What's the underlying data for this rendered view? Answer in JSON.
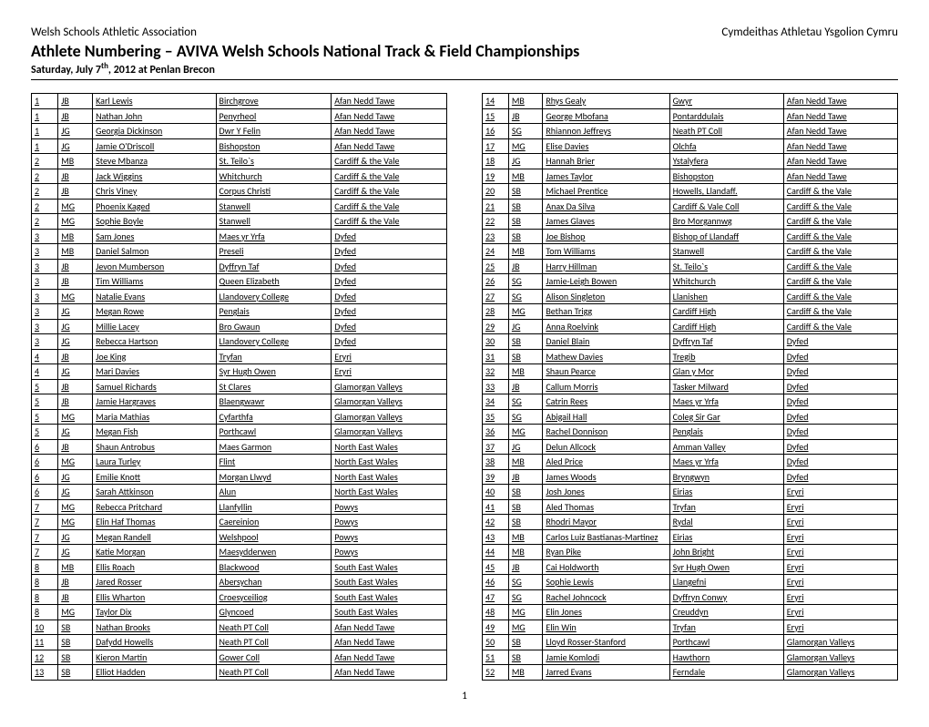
{
  "header_left": "Welsh Schools Athletic Association",
  "header_right": "Cymdeithas Athletau Ysgolion Cymru",
  "title": "Athlete Numbering – AVIVA Welsh Schools National Track & Field Championships",
  "subtitle_pre": "Saturday, July 7",
  "subtitle_sup": "th",
  "subtitle_post": ", 2012 at Penlan Brecon",
  "page_number": "1",
  "col_widths": [
    "20px",
    "28px",
    "118px",
    "110px",
    "110px"
  ],
  "left_rows": [
    [
      "1",
      "JB",
      "Karl Lewis",
      "Birchgrove",
      "Afan Nedd Tawe"
    ],
    [
      "1",
      "JB",
      "Nathan John",
      "Penyrheol",
      "Afan Nedd Tawe"
    ],
    [
      "1",
      "JG",
      "Georgia Dickinson",
      "Dwr Y Felin",
      "Afan Nedd Tawe"
    ],
    [
      "1",
      "JG",
      "Jamie O'Driscoll",
      "Bishopston",
      "Afan Nedd Tawe"
    ],
    [
      "2",
      "MB",
      "Steve Mbanza",
      "St. Teilo`s",
      "Cardiff & the Vale"
    ],
    [
      "2",
      "JB",
      "Jack Wiggins",
      "Whitchurch",
      "Cardiff & the Vale"
    ],
    [
      "2",
      "JB",
      "Chris Viney",
      "Corpus Christi",
      "Cardiff & the Vale"
    ],
    [
      "2",
      "MG",
      "Phoenix Kaged",
      "Stanwell",
      "Cardiff & the Vale"
    ],
    [
      "2",
      "MG",
      "Sophie Boyle",
      "Stanwell",
      "Cardiff & the Vale"
    ],
    [
      "3",
      "MB",
      "Sam Jones",
      "Maes yr Yrfa",
      "Dyfed"
    ],
    [
      "3",
      "MB",
      "Daniel Salmon",
      "Preseli",
      "Dyfed"
    ],
    [
      "3",
      "JB",
      "Jevon Mumberson",
      "Dyffryn Taf",
      "Dyfed"
    ],
    [
      "3",
      "JB",
      "Tim Williams",
      "Queen Elizabeth",
      "Dyfed"
    ],
    [
      "3",
      "MG",
      "Natalie Evans",
      "Llandovery College",
      "Dyfed"
    ],
    [
      "3",
      "JG",
      "Megan Rowe",
      "Penglais",
      "Dyfed"
    ],
    [
      "3",
      "JG",
      "Millie Lacey",
      "Bro Gwaun",
      "Dyfed"
    ],
    [
      "3",
      "JG",
      "Rebecca Hartson",
      "Llandovery College",
      "Dyfed"
    ],
    [
      "4",
      "JB",
      "Joe King",
      "Tryfan",
      "Eryri"
    ],
    [
      "4",
      "JG",
      "Mari Davies",
      "Syr Hugh Owen",
      "Eryri"
    ],
    [
      "5",
      "JB",
      "Samuel Richards",
      "St Clares",
      "Glamorgan Valleys"
    ],
    [
      "5",
      "JB",
      "Jamie Hargraves",
      "Blaengwawr",
      "Glamorgan Valleys"
    ],
    [
      "5",
      "MG",
      "Maria Mathias",
      "Cyfarthfa",
      "Glamorgan Valleys"
    ],
    [
      "5",
      "JG",
      "Megan Fish",
      "Porthcawl",
      "Glamorgan Valleys"
    ],
    [
      "6",
      "JB",
      "Shaun Antrobus",
      "Maes Garmon",
      "North East Wales"
    ],
    [
      "6",
      "MG",
      "Laura  Turley",
      "Flint",
      "North East Wales"
    ],
    [
      "6",
      "JG",
      "Emilie Knott",
      "Morgan Llwyd",
      "North East Wales"
    ],
    [
      "6",
      "JG",
      "Sarah  Attkinson",
      "Alun",
      "North East Wales"
    ],
    [
      "7",
      "MG",
      "Rebecca Pritchard",
      "Llanfyllin",
      "Powys"
    ],
    [
      "7",
      "MG",
      " Elin Haf Thomas",
      "Caereinion",
      "Powys"
    ],
    [
      "7",
      "JG",
      "Megan Randell",
      "Welshpool",
      "Powys"
    ],
    [
      "7",
      "JG",
      "Katie  Morgan",
      "Maesydderwen",
      "Powys"
    ],
    [
      "8",
      "MB",
      "Ellis  Roach",
      "Blackwood",
      "South East Wales"
    ],
    [
      "8",
      "JB",
      "Jared  Rosser",
      "Abersychan",
      "South East Wales"
    ],
    [
      "8",
      "JB",
      "Ellis  Wharton",
      "Croesyceiliog",
      "South East Wales"
    ],
    [
      "8",
      "MG",
      "Taylor Dix",
      "Glyncoed",
      "South East Wales"
    ],
    [
      "10",
      "SB",
      "Nathan Brooks",
      "Neath PT Coll",
      "Afan Nedd Tawe"
    ],
    [
      "11",
      "SB",
      "Dafydd Howells",
      "Neath PT Coll",
      "Afan Nedd Tawe"
    ],
    [
      "12",
      "SB",
      "Kieron Martin",
      "Gower Coll",
      "Afan Nedd Tawe"
    ],
    [
      "13",
      "SB",
      "Elliot Hadden",
      "Neath PT Coll",
      "Afan Nedd Tawe"
    ]
  ],
  "right_rows": [
    [
      "14",
      "MB",
      "Rhys Gealy",
      "Gwyr",
      "Afan Nedd Tawe"
    ],
    [
      "15",
      "JB",
      "George Mbofana",
      "Pontarddulais",
      "Afan Nedd Tawe"
    ],
    [
      "16",
      "SG",
      "Rhiannon Jeffreys",
      "Neath PT Coll",
      "Afan Nedd Tawe"
    ],
    [
      "17",
      "MG",
      "Elise Davies",
      "Olchfa",
      "Afan Nedd Tawe"
    ],
    [
      "18",
      "JG",
      "Hannah Brier",
      "Ystalyfera",
      "Afan Nedd Tawe"
    ],
    [
      "19",
      "MB",
      "James Taylor",
      "Bishopston",
      "Afan Nedd Tawe"
    ],
    [
      "20",
      "SB",
      "Michael  Prentice",
      "Howells, Llandaff.",
      "Cardiff & the Vale"
    ],
    [
      "21",
      "SB",
      "Anax Da Silva",
      "Cardiff & Vale Coll",
      "Cardiff & the Vale"
    ],
    [
      "22",
      "SB",
      "James Glaves",
      "Bro Morgannwg",
      "Cardiff & the Vale"
    ],
    [
      "23",
      "SB",
      "Joe Bishop",
      "Bishop of Llandaff",
      "Cardiff & the Vale"
    ],
    [
      "24",
      "MB",
      "Tom  Williams",
      "Stanwell",
      "Cardiff & the Vale"
    ],
    [
      "25",
      "JB",
      "Harry Hillman",
      "St. Teilo`s",
      "Cardiff & the Vale"
    ],
    [
      "26",
      "SG",
      "Jamie-Leigh Bowen",
      "Whitchurch",
      "Cardiff & the Vale"
    ],
    [
      "27",
      "SG",
      "Alison Singleton",
      "Llanishen",
      "Cardiff & the Vale"
    ],
    [
      "28",
      "MG",
      "Bethan Trigg",
      "Cardiff High",
      "Cardiff & the Vale"
    ],
    [
      "29",
      "JG",
      "Anna Roelvink",
      "Cardiff High",
      "Cardiff & the Vale"
    ],
    [
      "30",
      "SB",
      "Daniel Blain",
      "Dyffryn Taf",
      "Dyfed"
    ],
    [
      "31",
      "SB",
      "Mathew Davies",
      "Tregib",
      "Dyfed"
    ],
    [
      "32",
      "MB",
      "Shaun Pearce",
      "Glan y Mor",
      "Dyfed"
    ],
    [
      "33",
      "JB",
      "Callum Morris",
      "Tasker Milward",
      "Dyfed"
    ],
    [
      "34",
      "SG",
      "Catrin Rees",
      "Maes yr Yrfa",
      "Dyfed"
    ],
    [
      "35",
      "SG",
      "Abigail Hall",
      "Coleg Sir Gar",
      "Dyfed"
    ],
    [
      "36",
      "MG",
      "Rachel Donnison",
      "Penglais",
      "Dyfed"
    ],
    [
      "37",
      "JG",
      "Delun Allcock",
      "Amman Valley",
      "Dyfed"
    ],
    [
      "38",
      "MB",
      "Aled Price",
      "Maes yr Yrfa",
      "Dyfed"
    ],
    [
      "39",
      "JB",
      "James Woods",
      "Bryngwyn",
      "Dyfed"
    ],
    [
      "40",
      "SB",
      "Josh Jones",
      "Eirias",
      "Eryri"
    ],
    [
      "41",
      "SB",
      "Aled Thomas",
      "Tryfan",
      "Eryri"
    ],
    [
      "42",
      "SB",
      "Rhodri Mayor",
      "Rydal",
      "Eryri"
    ],
    [
      "43",
      "MB",
      "Carlos Luiz Bastianas-Martinez",
      "Eirias",
      "Eryri"
    ],
    [
      "44",
      "MB",
      "Ryan Pike",
      "John Bright",
      "Eryri"
    ],
    [
      "45",
      "JB",
      "Cai Holdworth",
      "Syr Hugh Owen",
      "Eryri"
    ],
    [
      "46",
      "SG",
      "Sophie Lewis",
      "Llangefni",
      "Eryri"
    ],
    [
      "47",
      "SG",
      "Rachel Johncock",
      "Dyffryn Conwy",
      "Eryri"
    ],
    [
      "48",
      "MG",
      "Elin  Jones",
      "Creuddyn",
      "Eryri"
    ],
    [
      "49",
      "MG",
      "Elin  Win",
      "Tryfan",
      "Eryri"
    ],
    [
      "50",
      "SB",
      "Lloyd Rosser-Stanford",
      "Porthcawl",
      "Glamorgan Valleys"
    ],
    [
      "51",
      "SB",
      "Jamie Komlodi",
      "Hawthorn",
      "Glamorgan Valleys"
    ],
    [
      "52",
      "MB",
      "Jarred  Evans",
      "Ferndale",
      "Glamorgan Valleys"
    ]
  ]
}
